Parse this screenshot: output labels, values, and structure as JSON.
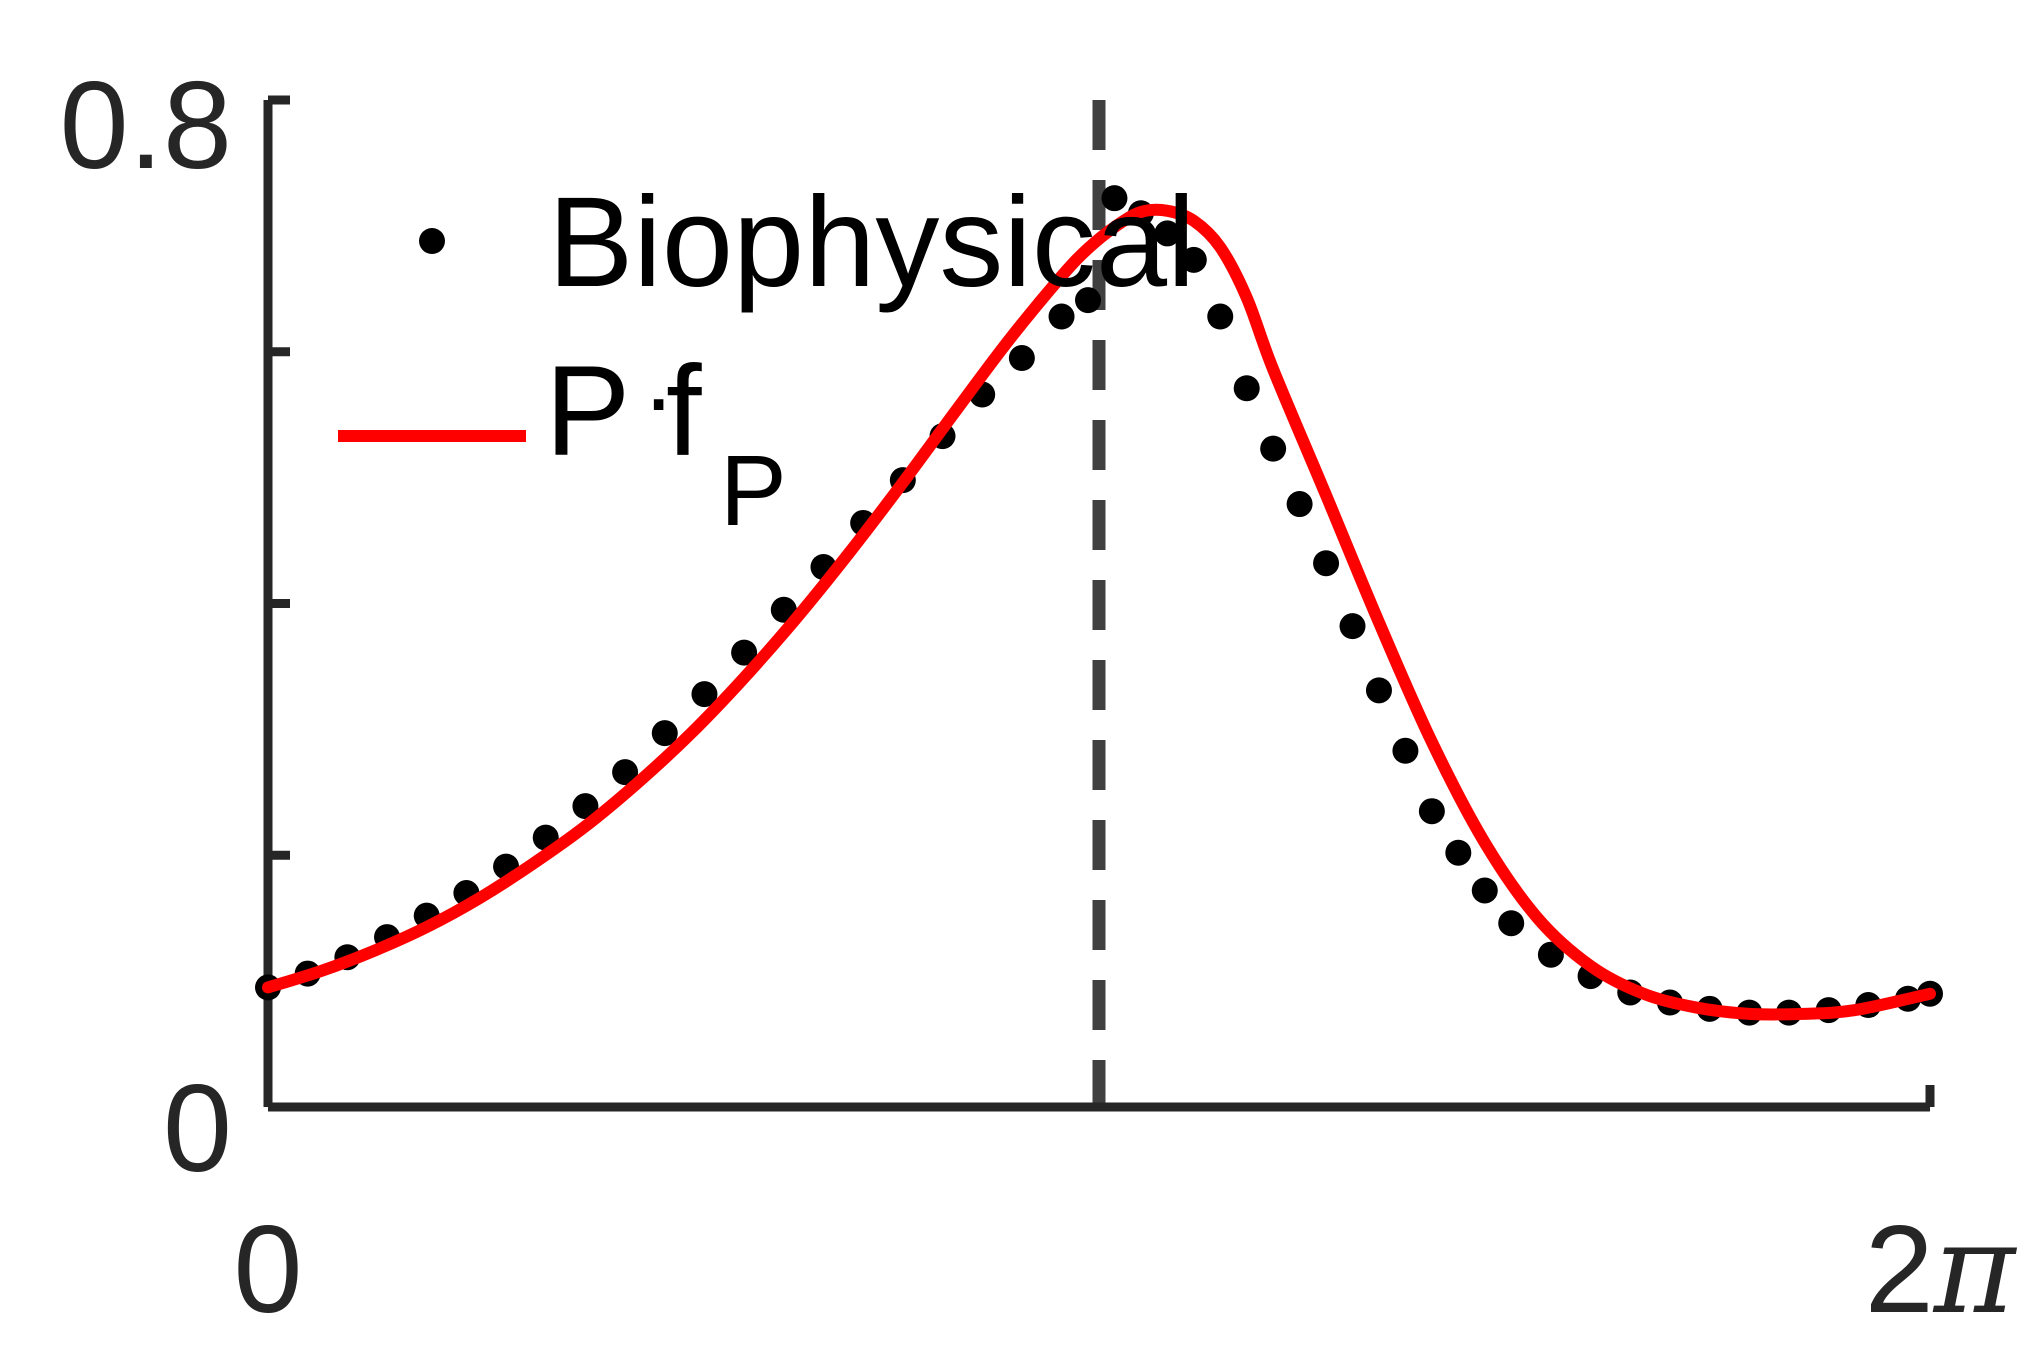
{
  "chart_data": {
    "type": "line",
    "title": "",
    "xlabel": "",
    "ylabel": "",
    "xlim": [
      0,
      6.2832
    ],
    "ylim": [
      0,
      0.8
    ],
    "x_ticks": [
      {
        "value": 0,
        "label": "0"
      },
      {
        "value": 6.2832,
        "label_num": "2",
        "label_sym": "π"
      }
    ],
    "y_ticks": [
      {
        "value": 0,
        "label": "0"
      },
      {
        "value": 0.2,
        "label": ""
      },
      {
        "value": 0.4,
        "label": ""
      },
      {
        "value": 0.6,
        "label": ""
      },
      {
        "value": 0.8,
        "label": "0.8"
      }
    ],
    "vline_x": 3.1416,
    "grid": false,
    "legend_position": "top-left",
    "legend": {
      "dots_label": "Biophysical",
      "line_label_main": "P",
      "line_label_dot": "·",
      "line_label_f": "f",
      "line_label_sub": "P"
    },
    "series": [
      {
        "name": "Biophysical",
        "style": "dots",
        "color": "#000000",
        "points": [
          [
            0.0,
            0.095
          ],
          [
            0.15,
            0.106
          ],
          [
            0.3,
            0.119
          ],
          [
            0.45,
            0.135
          ],
          [
            0.6,
            0.152
          ],
          [
            0.75,
            0.17
          ],
          [
            0.9,
            0.191
          ],
          [
            1.05,
            0.214
          ],
          [
            1.2,
            0.239
          ],
          [
            1.35,
            0.266
          ],
          [
            1.5,
            0.297
          ],
          [
            1.65,
            0.328
          ],
          [
            1.8,
            0.361
          ],
          [
            1.95,
            0.395
          ],
          [
            2.1,
            0.429
          ],
          [
            2.25,
            0.464
          ],
          [
            2.4,
            0.498
          ],
          [
            2.55,
            0.533
          ],
          [
            2.7,
            0.566
          ],
          [
            2.85,
            0.595
          ],
          [
            3.0,
            0.628
          ],
          [
            3.1,
            0.641
          ],
          [
            3.2,
            0.722
          ],
          [
            3.3,
            0.71
          ],
          [
            3.4,
            0.694
          ],
          [
            3.5,
            0.673
          ],
          [
            3.6,
            0.628
          ],
          [
            3.7,
            0.571
          ],
          [
            3.8,
            0.523
          ],
          [
            3.9,
            0.479
          ],
          [
            4.0,
            0.432
          ],
          [
            4.1,
            0.382
          ],
          [
            4.2,
            0.331
          ],
          [
            4.3,
            0.283
          ],
          [
            4.4,
            0.235
          ],
          [
            4.5,
            0.202
          ],
          [
            4.6,
            0.172
          ],
          [
            4.7,
            0.146
          ],
          [
            4.85,
            0.121
          ],
          [
            5.0,
            0.104
          ],
          [
            5.15,
            0.091
          ],
          [
            5.3,
            0.083
          ],
          [
            5.45,
            0.078
          ],
          [
            5.6,
            0.075
          ],
          [
            5.75,
            0.075
          ],
          [
            5.9,
            0.077
          ],
          [
            6.05,
            0.081
          ],
          [
            6.2,
            0.086
          ],
          [
            6.2832,
            0.09
          ]
        ]
      },
      {
        "name": "P·fP",
        "style": "line",
        "color": "#ff0000",
        "points": [
          [
            0.0,
            0.095
          ],
          [
            0.2,
            0.108
          ],
          [
            0.4,
            0.124
          ],
          [
            0.6,
            0.143
          ],
          [
            0.8,
            0.166
          ],
          [
            1.0,
            0.193
          ],
          [
            1.2,
            0.223
          ],
          [
            1.4,
            0.258
          ],
          [
            1.6,
            0.297
          ],
          [
            1.8,
            0.341
          ],
          [
            2.0,
            0.389
          ],
          [
            2.2,
            0.441
          ],
          [
            2.4,
            0.496
          ],
          [
            2.6,
            0.553
          ],
          [
            2.8,
            0.609
          ],
          [
            3.0,
            0.66
          ],
          [
            3.1,
            0.682
          ],
          [
            3.2,
            0.699
          ],
          [
            3.3,
            0.711
          ],
          [
            3.4,
            0.712
          ],
          [
            3.5,
            0.704
          ],
          [
            3.6,
            0.683
          ],
          [
            3.7,
            0.643
          ],
          [
            3.8,
            0.586
          ],
          [
            4.0,
            0.486
          ],
          [
            4.2,
            0.385
          ],
          [
            4.4,
            0.29
          ],
          [
            4.6,
            0.21
          ],
          [
            4.8,
            0.15
          ],
          [
            5.0,
            0.112
          ],
          [
            5.2,
            0.09
          ],
          [
            5.4,
            0.079
          ],
          [
            5.6,
            0.074
          ],
          [
            5.8,
            0.074
          ],
          [
            6.0,
            0.077
          ],
          [
            6.2832,
            0.09
          ]
        ]
      }
    ]
  }
}
